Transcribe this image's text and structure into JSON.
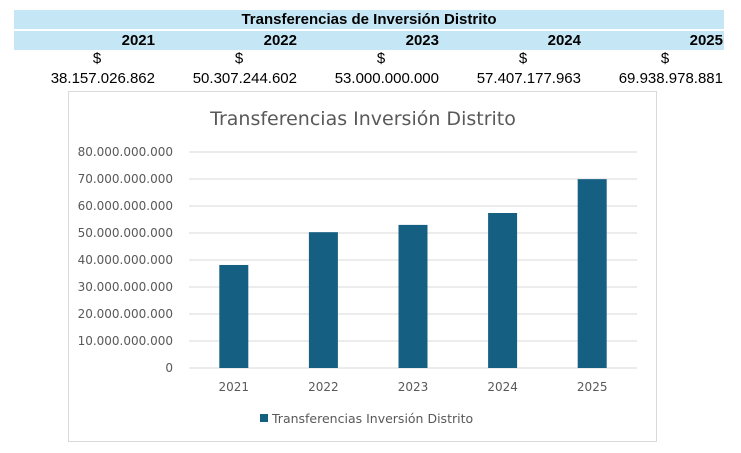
{
  "table": {
    "title": "Transferencias de Inversión Distrito",
    "years": [
      "2021",
      "2022",
      "2023",
      "2024",
      "2025"
    ],
    "currency_symbol": "$",
    "values": [
      "38.157.026.862",
      "50.307.244.602",
      "53.000.000.000",
      "57.407.177.963",
      "69.938.978.881"
    ]
  },
  "colors": {
    "header_fill": "#c5e6f4",
    "bar": "#156082",
    "gridline": "#d9d9d9"
  },
  "chart_data": {
    "type": "bar",
    "title": "Transferencias Inversión Distrito",
    "categories": [
      "2021",
      "2022",
      "2023",
      "2024",
      "2025"
    ],
    "series": [
      {
        "name": "Transferencias Inversión Distrito",
        "values": [
          38157026862,
          50307244602,
          53000000000,
          57407177963,
          69938978881
        ]
      }
    ],
    "ylim": [
      0,
      80000000000
    ],
    "y_ticks": [
      0,
      10000000000,
      20000000000,
      30000000000,
      40000000000,
      50000000000,
      60000000000,
      70000000000,
      80000000000
    ],
    "y_tick_labels": [
      "0",
      "10.000.000.000",
      "20.000.000.000",
      "30.000.000.000",
      "40.000.000.000",
      "50.000.000.000",
      "60.000.000.000",
      "70.000.000.000",
      "80.000.000.000"
    ],
    "grid": true,
    "legend_position": "bottom"
  }
}
